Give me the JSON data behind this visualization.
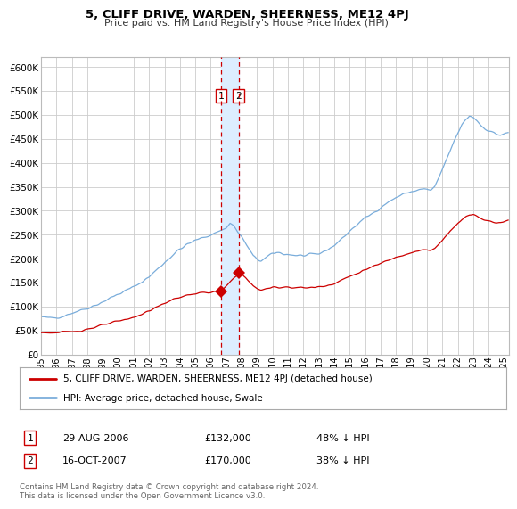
{
  "title": "5, CLIFF DRIVE, WARDEN, SHEERNESS, ME12 4PJ",
  "subtitle": "Price paid vs. HM Land Registry's House Price Index (HPI)",
  "legend_line1": "5, CLIFF DRIVE, WARDEN, SHEERNESS, ME12 4PJ (detached house)",
  "legend_line2": "HPI: Average price, detached house, Swale",
  "footer": "Contains HM Land Registry data © Crown copyright and database right 2024.\nThis data is licensed under the Open Government Licence v3.0.",
  "sale1_date": "29-AUG-2006",
  "sale1_price": "£132,000",
  "sale1_hpi": "48% ↓ HPI",
  "sale1_year": 2006.667,
  "sale1_value": 132000,
  "sale2_date": "16-OCT-2007",
  "sale2_price": "£170,000",
  "sale2_hpi": "38% ↓ HPI",
  "sale2_year": 2007.792,
  "sale2_value": 170000,
  "ylim": [
    0,
    620000
  ],
  "xlim": [
    1995.0,
    2025.3
  ],
  "yticks": [
    0,
    50000,
    100000,
    150000,
    200000,
    250000,
    300000,
    350000,
    400000,
    450000,
    500000,
    550000,
    600000
  ],
  "ytick_labels": [
    "£0",
    "£50K",
    "£100K",
    "£150K",
    "£200K",
    "£250K",
    "£300K",
    "£350K",
    "£400K",
    "£450K",
    "£500K",
    "£550K",
    "£600K"
  ],
  "xticks": [
    1995,
    1996,
    1997,
    1998,
    1999,
    2000,
    2001,
    2002,
    2003,
    2004,
    2005,
    2006,
    2007,
    2008,
    2009,
    2010,
    2011,
    2012,
    2013,
    2014,
    2015,
    2016,
    2017,
    2018,
    2019,
    2020,
    2021,
    2022,
    2023,
    2024,
    2025
  ],
  "red_color": "#cc0000",
  "blue_color": "#7aaddb",
  "shade_color": "#ddeeff",
  "grid_color": "#cccccc",
  "background_color": "#ffffff"
}
